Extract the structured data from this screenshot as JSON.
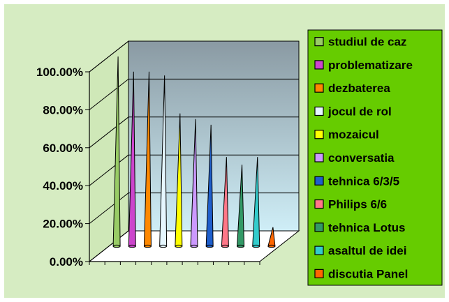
{
  "colors": {
    "chart_area": "#d6ecc2",
    "legend_bg": "#66cc00",
    "wall_top": "#8a9aa3",
    "wall_bottom": "#cfeef7",
    "floor": "#ffffff"
  },
  "chart_data": {
    "type": "bar",
    "style": "3d-cone",
    "categories": [
      "studiul de caz",
      "problematizare",
      "dezbaterea",
      "jocul de rol",
      "mozaicul",
      "conversatia",
      "tehnica 6/3/5",
      "Philips 6/6",
      "tehnica Lotus",
      "asaltul de idei",
      "discutia Panel"
    ],
    "values": [
      100,
      92,
      92,
      90,
      70,
      67,
      64,
      47,
      43,
      47,
      10
    ],
    "colors": [
      "#99cc66",
      "#cc44cc",
      "#ff8800",
      "#e6f7ff",
      "#ffff00",
      "#cc99ff",
      "#1f5fcc",
      "#ff7788",
      "#339966",
      "#33cccc",
      "#ff6600"
    ],
    "y_ticks": [
      "0.00%",
      "20.00%",
      "40.00%",
      "60.00%",
      "80.00%",
      "100.00%"
    ],
    "ylim": [
      0,
      100
    ],
    "grid": true,
    "legend_position": "right"
  }
}
